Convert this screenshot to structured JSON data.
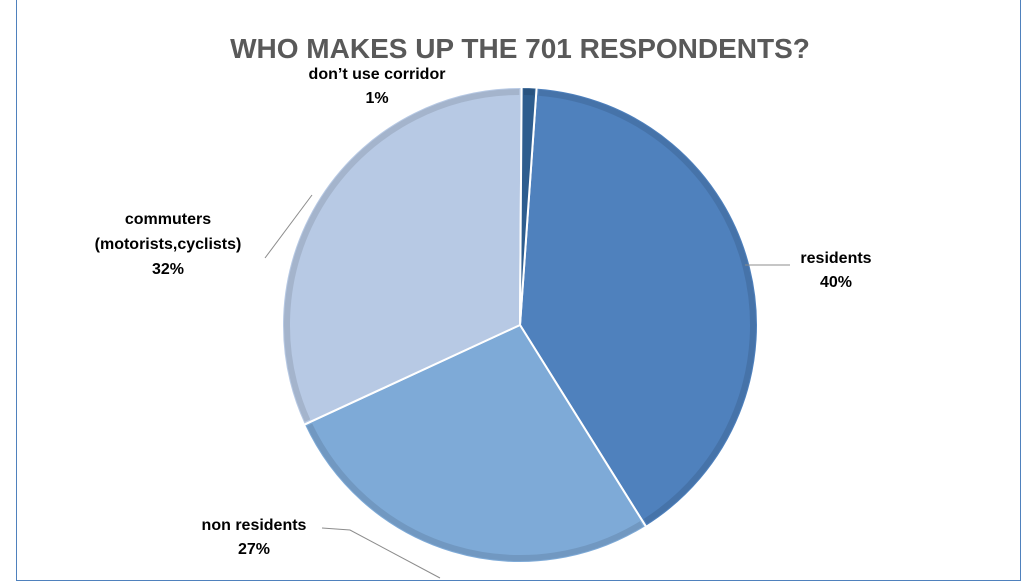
{
  "chart_data": {
    "type": "pie",
    "title": "WHO MAKES UP THE 701 RESPONDENTS?",
    "slices": [
      {
        "label_lines": [
          "residents"
        ],
        "pct_label": "40%",
        "value": 40,
        "color": "#4f81bd"
      },
      {
        "label_lines": [
          "non residents"
        ],
        "pct_label": "27%",
        "value": 27,
        "color": "#7eaad7"
      },
      {
        "label_lines": [
          "commuters",
          "(motorists,cyclists)"
        ],
        "pct_label": "32%",
        "value": 32,
        "color": "#b7c9e4"
      },
      {
        "label_lines": [
          "don’t use corridor"
        ],
        "pct_label": "1%",
        "value": 1,
        "color": "#2e5d8e"
      }
    ],
    "legend": "none"
  }
}
